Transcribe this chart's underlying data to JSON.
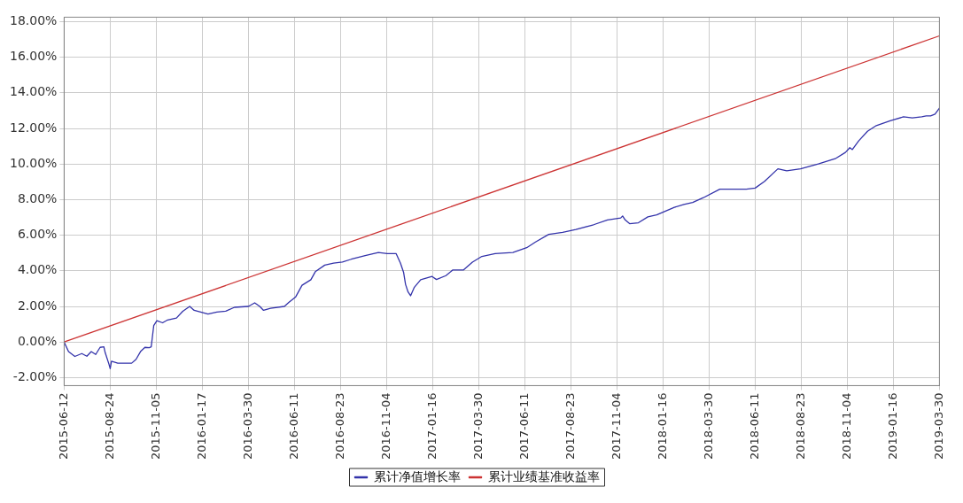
{
  "chart_data": {
    "type": "line",
    "xlim": [
      "2015-06-12",
      "2019-03-30"
    ],
    "xticks": [
      "2015-06-12",
      "2015-08-24",
      "2015-11-05",
      "2016-01-17",
      "2016-03-30",
      "2016-06-11",
      "2016-08-23",
      "2016-11-04",
      "2017-01-16",
      "2017-03-30",
      "2017-06-11",
      "2017-08-23",
      "2017-11-04",
      "2018-01-16",
      "2018-03-30",
      "2018-06-11",
      "2018-08-23",
      "2018-11-04",
      "2019-01-16",
      "2019-03-30"
    ],
    "ylim": [
      -2.45,
      18.25
    ],
    "yticks": [
      {
        "value": -2,
        "label": "-2.00%"
      },
      {
        "value": 0,
        "label": "0.00%"
      },
      {
        "value": 2,
        "label": "2.00%"
      },
      {
        "value": 4,
        "label": "4.00%"
      },
      {
        "value": 6,
        "label": "6.00%"
      },
      {
        "value": 8,
        "label": "8.00%"
      },
      {
        "value": 10,
        "label": "10.00%"
      },
      {
        "value": 12,
        "label": "12.00%"
      },
      {
        "value": 14,
        "label": "14.00%"
      },
      {
        "value": 16,
        "label": "16.00%"
      },
      {
        "value": 18,
        "label": "18.00%"
      }
    ],
    "grid": true,
    "legend": "bottom",
    "marker": "none",
    "line_style": "solid",
    "series": [
      {
        "name": "累计净值增长率",
        "color": "#3333aa",
        "x": [
          "2015-06-12",
          "2015-06-19",
          "2015-06-29",
          "2015-07-10",
          "2015-07-18",
          "2015-07-25",
          "2015-08-01",
          "2015-08-08",
          "2015-08-14",
          "2015-08-16",
          "2015-08-22",
          "2015-08-24",
          "2015-08-26",
          "2015-09-05",
          "2015-09-20",
          "2015-09-27",
          "2015-10-04",
          "2015-10-11",
          "2015-10-18",
          "2015-10-25",
          "2015-10-28",
          "2015-11-01",
          "2015-11-06",
          "2015-11-15",
          "2015-11-23",
          "2015-12-07",
          "2015-12-17",
          "2015-12-28",
          "2016-01-04",
          "2016-01-26",
          "2016-02-09",
          "2016-02-23",
          "2016-03-08",
          "2016-03-30",
          "2016-04-09",
          "2016-04-17",
          "2016-04-23",
          "2016-05-04",
          "2016-05-26",
          "2016-06-02",
          "2016-06-13",
          "2016-06-23",
          "2016-07-07",
          "2016-07-14",
          "2016-07-29",
          "2016-08-12",
          "2016-08-26",
          "2016-09-09",
          "2016-10-01",
          "2016-10-22",
          "2016-11-05",
          "2016-11-19",
          "2016-11-26",
          "2016-12-01",
          "2016-12-04",
          "2016-12-08",
          "2016-12-12",
          "2016-12-18",
          "2016-12-28",
          "2017-01-15",
          "2017-01-22",
          "2017-02-06",
          "2017-02-17",
          "2017-03-06",
          "2017-03-20",
          "2017-04-04",
          "2017-04-25",
          "2017-05-23",
          "2017-06-14",
          "2017-06-28",
          "2017-07-19",
          "2017-08-10",
          "2017-08-31",
          "2017-09-28",
          "2017-10-20",
          "2017-11-10",
          "2017-11-13",
          "2017-11-17",
          "2017-11-24",
          "2017-12-08",
          "2017-12-23",
          "2018-01-06",
          "2018-02-03",
          "2018-02-18",
          "2018-03-04",
          "2018-03-21",
          "2018-04-16",
          "2018-05-07",
          "2018-05-28",
          "2018-06-11",
          "2018-06-26",
          "2018-07-17",
          "2018-07-31",
          "2018-08-22",
          "2018-09-19",
          "2018-10-17",
          "2018-11-01",
          "2018-11-08",
          "2018-11-12",
          "2018-11-22",
          "2018-12-06",
          "2018-12-20",
          "2019-01-11",
          "2019-02-01",
          "2019-02-15",
          "2019-03-02",
          "2019-03-09",
          "2019-03-16",
          "2019-03-23",
          "2019-03-30"
        ],
        "values": [
          0,
          -0.54,
          -0.81,
          -0.65,
          -0.8,
          -0.54,
          -0.7,
          -0.3,
          -0.27,
          -0.59,
          -1.24,
          -1.5,
          -1.08,
          -1.19,
          -1.19,
          -1.19,
          -0.97,
          -0.54,
          -0.3,
          -0.32,
          -0.27,
          0.92,
          1.2,
          1.08,
          1.24,
          1.35,
          1.73,
          2.0,
          1.78,
          1.57,
          1.68,
          1.73,
          1.95,
          2.0,
          2.2,
          2.0,
          1.78,
          1.89,
          2.0,
          2.22,
          2.54,
          3.19,
          3.5,
          3.95,
          4.32,
          4.43,
          4.49,
          4.65,
          4.86,
          5.03,
          4.97,
          4.97,
          4.43,
          3.9,
          3.24,
          2.81,
          2.6,
          3.08,
          3.5,
          3.68,
          3.51,
          3.73,
          4.05,
          4.05,
          4.49,
          4.81,
          4.97,
          5.03,
          5.3,
          5.62,
          6.05,
          6.16,
          6.32,
          6.59,
          6.86,
          6.97,
          7.08,
          6.86,
          6.65,
          6.7,
          7.03,
          7.14,
          7.57,
          7.73,
          7.84,
          8.11,
          8.59,
          8.59,
          8.59,
          8.65,
          9.03,
          9.73,
          9.62,
          9.73,
          10.0,
          10.32,
          10.65,
          10.92,
          10.81,
          11.3,
          11.84,
          12.16,
          12.43,
          12.65,
          12.59,
          12.65,
          12.7,
          12.7,
          12.8,
          13.14
        ]
      },
      {
        "name": "累计业绩基准收益率",
        "color": "#cc3333",
        "x": [
          "2015-06-12",
          "2019-03-30"
        ],
        "values": [
          0,
          17.2
        ]
      }
    ]
  }
}
